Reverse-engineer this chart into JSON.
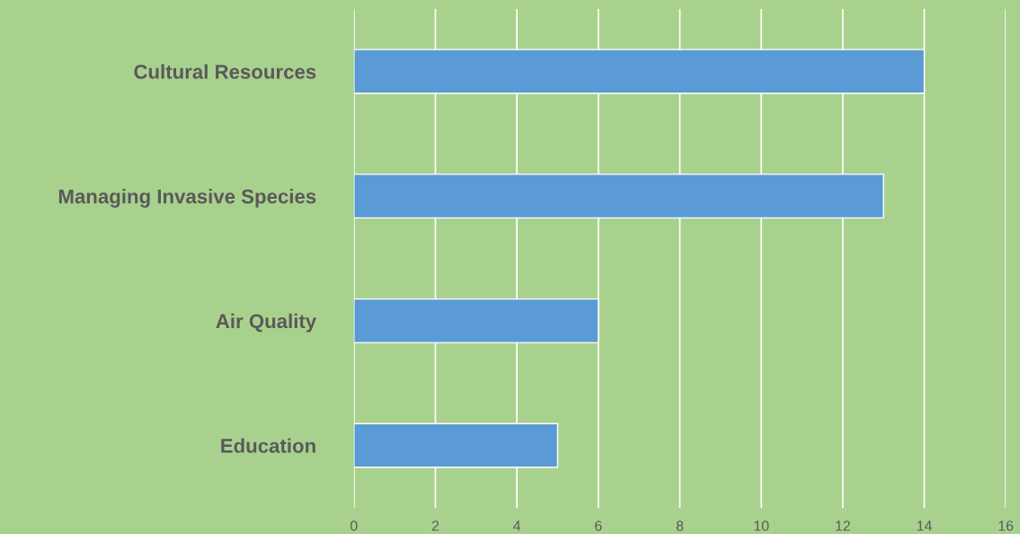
{
  "chart_data": {
    "type": "bar",
    "orientation": "horizontal",
    "categories": [
      "Cultural Resources",
      "Managing Invasive Species",
      "Air Quality",
      "Education"
    ],
    "values": [
      14,
      13,
      6,
      5
    ],
    "color": "#5b9bd5",
    "xlim": [
      0,
      16
    ],
    "xticks": [
      0,
      2,
      4,
      6,
      8,
      10,
      12,
      14,
      16
    ],
    "grid": "x",
    "legend": false
  }
}
